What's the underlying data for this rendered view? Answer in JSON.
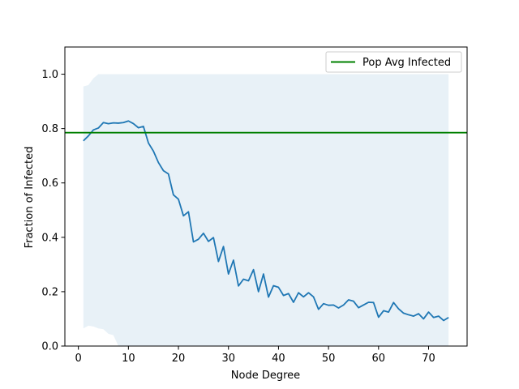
{
  "chart_data": {
    "type": "line",
    "xlabel": "Node Degree",
    "ylabel": "Fraction of Infected",
    "xlim": [
      -2.7,
      77.7
    ],
    "ylim": [
      0.0,
      1.1
    ],
    "xticks": [
      0,
      10,
      20,
      30,
      40,
      50,
      60,
      70
    ],
    "yticks": [
      0.0,
      0.2,
      0.4,
      0.6,
      0.8,
      1.0
    ],
    "ytick_labels": [
      "0.0",
      "0.2",
      "0.4",
      "0.6",
      "0.8",
      "1.0"
    ],
    "grid": false,
    "legend_position": "top-right",
    "series": [
      {
        "style": "line",
        "color": "#1f77b4",
        "x": [
          1,
          2,
          3,
          4,
          5,
          6,
          7,
          8,
          9,
          10,
          11,
          12,
          13,
          14,
          15,
          16,
          17,
          18,
          19,
          20,
          21,
          22,
          23,
          24,
          25,
          26,
          27,
          28,
          29,
          30,
          31,
          32,
          33,
          34,
          35,
          36,
          37,
          38,
          39,
          40,
          41,
          42,
          43,
          44,
          45,
          46,
          47,
          48,
          49,
          50,
          51,
          52,
          53,
          54,
          55,
          56,
          57,
          58,
          59,
          60,
          61,
          62,
          63,
          64,
          65,
          66,
          67,
          68,
          69,
          70,
          71,
          72,
          73,
          74
        ],
        "y": [
          0.755,
          0.773,
          0.795,
          0.802,
          0.822,
          0.818,
          0.821,
          0.82,
          0.822,
          0.828,
          0.818,
          0.803,
          0.808,
          0.747,
          0.717,
          0.675,
          0.645,
          0.633,
          0.556,
          0.54,
          0.479,
          0.494,
          0.383,
          0.393,
          0.415,
          0.385,
          0.399,
          0.311,
          0.366,
          0.265,
          0.316,
          0.221,
          0.246,
          0.24,
          0.281,
          0.2,
          0.265,
          0.18,
          0.222,
          0.216,
          0.186,
          0.193,
          0.161,
          0.196,
          0.181,
          0.196,
          0.181,
          0.135,
          0.156,
          0.15,
          0.151,
          0.14,
          0.151,
          0.17,
          0.165,
          0.141,
          0.151,
          0.161,
          0.16,
          0.106,
          0.13,
          0.125,
          0.16,
          0.137,
          0.121,
          0.115,
          0.11,
          0.119,
          0.1,
          0.125,
          0.105,
          0.11,
          0.094,
          0.105
        ]
      },
      {
        "name": "Pop Avg Infected",
        "style": "hline",
        "color": "#008000",
        "y": 0.785
      }
    ],
    "band": {
      "color": "#1f77b4",
      "opacity": 0.1,
      "x": [
        1,
        2,
        3,
        4,
        5,
        6,
        7,
        8,
        9,
        10,
        74
      ],
      "upper": [
        0.955,
        0.96,
        0.985,
        1.0,
        1.0,
        1.0,
        1.0,
        1.0,
        1.0,
        1.0,
        1.0
      ],
      "lower": [
        0.065,
        0.075,
        0.072,
        0.065,
        0.062,
        0.045,
        0.04,
        0.0,
        0.0,
        0.0,
        0.0
      ]
    }
  }
}
